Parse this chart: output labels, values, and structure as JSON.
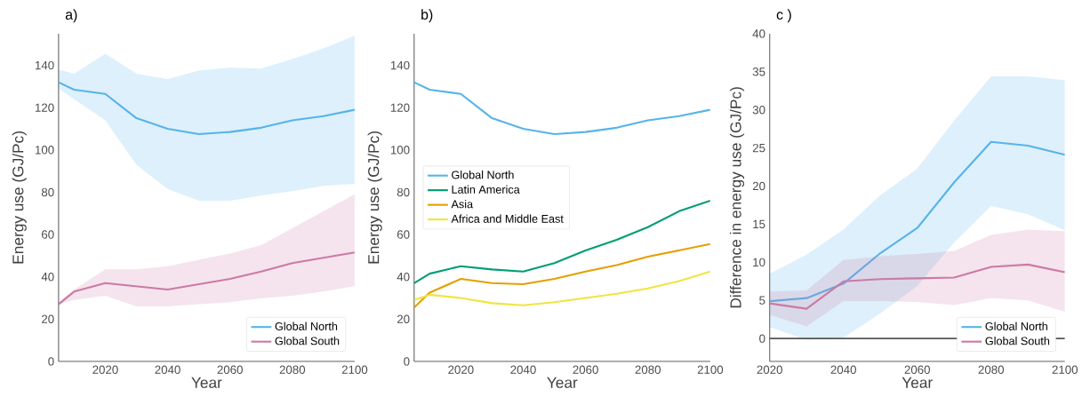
{
  "chart_data": [
    {
      "type": "line",
      "title": "a)",
      "xlabel": "Year",
      "ylabel": "Energy use (GJ/Pc)",
      "x": [
        2005,
        2010,
        2020,
        2030,
        2040,
        2050,
        2060,
        2070,
        2080,
        2090,
        2100
      ],
      "xlim": [
        2005,
        2100
      ],
      "ylim": [
        0,
        155
      ],
      "xticks": [
        2020,
        2040,
        2060,
        2080,
        2100
      ],
      "yticks": [
        0,
        20,
        40,
        60,
        80,
        100,
        120,
        140
      ],
      "legend": "bottom right",
      "series": [
        {
          "name": "Global North",
          "color": "#56b4e9",
          "values": [
            132,
            128.5,
            126.5,
            115,
            110,
            107.5,
            108.5,
            110.5,
            114,
            116,
            119
          ],
          "upper": [
            138,
            136,
            145.5,
            136,
            133.5,
            137.5,
            139,
            138.5,
            143,
            148,
            154
          ],
          "lower": [
            129,
            124,
            114,
            93,
            81.5,
            76,
            76,
            78.5,
            80.5,
            83,
            84
          ]
        },
        {
          "name": "Global South",
          "color": "#cc79a7",
          "values": [
            27,
            33,
            37,
            35.5,
            34,
            36.5,
            39,
            42.5,
            46.5,
            49,
            51.5
          ],
          "upper": [
            28,
            34,
            43.5,
            43.5,
            45,
            48,
            51,
            55,
            63,
            71,
            79
          ],
          "lower": [
            27,
            29,
            31,
            26,
            26,
            27,
            28,
            29.8,
            31,
            33,
            35.5
          ]
        }
      ]
    },
    {
      "type": "line",
      "title": "b)",
      "xlabel": "Year",
      "ylabel": "Energy use (GJ/Pc)",
      "x": [
        2005,
        2010,
        2020,
        2030,
        2040,
        2050,
        2060,
        2070,
        2080,
        2090,
        2100
      ],
      "xlim": [
        2005,
        2100
      ],
      "ylim": [
        0,
        155
      ],
      "xticks": [
        2020,
        2040,
        2060,
        2080,
        2100
      ],
      "yticks": [
        0,
        20,
        40,
        60,
        80,
        100,
        120,
        140
      ],
      "legend": "left",
      "series": [
        {
          "name": "Global North",
          "color": "#56b4e9",
          "values": [
            132,
            128.5,
            126.5,
            115,
            110,
            107.5,
            108.5,
            110.5,
            114,
            116,
            119
          ]
        },
        {
          "name": "Latin America",
          "color": "#009e73",
          "values": [
            37,
            41.5,
            45,
            43.5,
            42.5,
            46.5,
            52.5,
            57.5,
            63.5,
            71,
            76
          ]
        },
        {
          "name": "Asia",
          "color": "#e69f00",
          "values": [
            25.5,
            32.5,
            39,
            37,
            36.5,
            39,
            42.5,
            45.5,
            49.5,
            52.5,
            55.5
          ]
        },
        {
          "name": "Africa and Middle East",
          "color": "#f0e442",
          "values": [
            29,
            31.5,
            30,
            27.5,
            26.5,
            28,
            30,
            32,
            34.5,
            38,
            42.5
          ]
        }
      ]
    },
    {
      "type": "line",
      "title": "c )",
      "xlabel": "Year",
      "ylabel": "Difference in energy use (GJ/Pc)",
      "x": [
        2020,
        2030,
        2040,
        2050,
        2060,
        2070,
        2080,
        2090,
        2100
      ],
      "xlim": [
        2020,
        2100
      ],
      "ylim": [
        -3,
        40
      ],
      "xticks": [
        2020,
        2040,
        2060,
        2080,
        2100
      ],
      "yticks": [
        0,
        5,
        10,
        15,
        20,
        25,
        30,
        35,
        40
      ],
      "legend": "bottom right",
      "ref_lines": [
        {
          "axis": "y",
          "value": 0,
          "color": "#555555"
        }
      ],
      "series": [
        {
          "name": "Global North",
          "color": "#56b4e9",
          "values": [
            4.9,
            5.3,
            7.2,
            11.2,
            14.5,
            20.5,
            25.8,
            25.3,
            24.1
          ],
          "upper": [
            8.5,
            11,
            14.3,
            18.8,
            22.3,
            28.6,
            34.4,
            34.4,
            33.9
          ],
          "lower": [
            1.5,
            -0.2,
            0.1,
            3.3,
            6.9,
            12.6,
            17.4,
            16.3,
            14.2
          ]
        },
        {
          "name": "Global South",
          "color": "#cc79a7",
          "values": [
            4.6,
            3.9,
            7.5,
            7.8,
            7.9,
            8,
            9.4,
            9.7,
            8.7
          ],
          "upper": [
            6.2,
            6.3,
            10.3,
            10.8,
            11.1,
            11.5,
            13.6,
            14.3,
            14.1
          ],
          "lower": [
            3.1,
            1.6,
            4.9,
            4.9,
            4.8,
            4.4,
            5.3,
            5,
            3.5
          ]
        }
      ]
    }
  ]
}
